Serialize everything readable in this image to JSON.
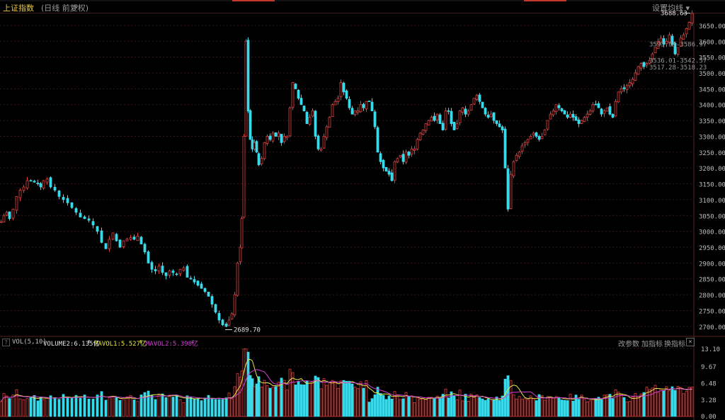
{
  "header": {
    "title": "上证指数",
    "subtitle": "(日线 前复权)",
    "settings_label": "设置均线"
  },
  "volume_panel": {
    "question_mark": "?",
    "indicator": "VOL(5,10)",
    "volume_label": "VOLUME2:6.135亿",
    "volume_arrow": "↑",
    "mavol1_label": "MAVOL1:5.527亿",
    "mavol1_arrow": "↑",
    "mavol2_label": "MAVOL2:5.398亿",
    "mavol2_arrow": "↓",
    "buttons": [
      "改参数",
      "加指标",
      "换指标"
    ],
    "close": "×"
  },
  "colors": {
    "up": "#e04040",
    "down": "#3ad8e8",
    "grid": "#3a1818",
    "axis_text": "#bdbdbd",
    "mavol1": "#e8e84a",
    "mavol2": "#d040d0",
    "title": "#e8c84a"
  },
  "chart_data": [
    {
      "type": "candlestick",
      "ylim": [
        2675,
        3690
      ],
      "yticks": [
        2700,
        2750,
        2800,
        2850,
        2900,
        2950,
        3000,
        3050,
        3100,
        3150,
        3200,
        3250,
        3300,
        3350,
        3400,
        3450,
        3500,
        3550,
        3600,
        3650
      ],
      "ytick_labels": [
        "2700.00",
        "2750.00",
        "2800.00",
        "2850.00",
        "2900.00",
        "2950.00",
        "3000.00",
        "3050.00",
        "3100.00",
        "3150.00",
        "3200.00",
        "3250.00",
        "3300.00",
        "3350.00",
        "3400.00",
        "3450.00",
        "3500.00",
        "3550.00",
        "3600.00",
        "3650.00"
      ],
      "annotations": [
        {
          "text": "3688.63",
          "value": 3688.63,
          "kind": "high"
        },
        {
          "text": "2689.70",
          "value": 2689.7,
          "kind": "low"
        },
        {
          "text": "3593.31-3586.97",
          "value": 3590,
          "kind": "gap"
        },
        {
          "text": "3536.01-3542.57",
          "value": 3539,
          "kind": "gap"
        },
        {
          "text": "3517.28-3518.23",
          "value": 3518,
          "kind": "gap"
        }
      ],
      "close_path": [
        [
          0,
          3030
        ],
        [
          4,
          3050
        ],
        [
          8,
          3060
        ],
        [
          12,
          3040
        ],
        [
          17,
          3070
        ],
        [
          22,
          3110
        ],
        [
          27,
          3130
        ],
        [
          32,
          3140
        ],
        [
          37,
          3160
        ],
        [
          42,
          3160
        ],
        [
          47,
          3155
        ],
        [
          52,
          3150
        ],
        [
          56,
          3140
        ],
        [
          60,
          3160
        ],
        [
          65,
          3165
        ],
        [
          70,
          3140
        ],
        [
          76,
          3130
        ],
        [
          82,
          3110
        ],
        [
          88,
          3100
        ],
        [
          94,
          3090
        ],
        [
          100,
          3075
        ],
        [
          106,
          3060
        ],
        [
          112,
          3045
        ],
        [
          118,
          3040
        ],
        [
          124,
          3035
        ],
        [
          130,
          3020
        ],
        [
          136,
          3000
        ],
        [
          142,
          2965
        ],
        [
          148,
          2945
        ],
        [
          153,
          2975
        ],
        [
          158,
          2995
        ],
        [
          163,
          2970
        ],
        [
          168,
          2950
        ],
        [
          173,
          2970
        ],
        [
          178,
          2975
        ],
        [
          183,
          2980
        ],
        [
          188,
          2975
        ],
        [
          193,
          2985
        ],
        [
          198,
          2960
        ],
        [
          203,
          2935
        ],
        [
          208,
          2900
        ],
        [
          213,
          2880
        ],
        [
          218,
          2875
        ],
        [
          223,
          2890
        ],
        [
          228,
          2870
        ],
        [
          233,
          2860
        ],
        [
          238,
          2875
        ],
        [
          243,
          2870
        ],
        [
          248,
          2865
        ],
        [
          253,
          2880
        ],
        [
          258,
          2885
        ],
        [
          263,
          2855
        ],
        [
          268,
          2850
        ],
        [
          273,
          2840
        ],
        [
          278,
          2830
        ],
        [
          283,
          2820
        ],
        [
          288,
          2810
        ],
        [
          293,
          2795
        ],
        [
          298,
          2770
        ],
        [
          303,
          2745
        ],
        [
          308,
          2720
        ],
        [
          313,
          2705
        ],
        [
          318,
          2700
        ],
        [
          322,
          2720
        ],
        [
          326,
          2740
        ],
        [
          330,
          2800
        ],
        [
          334,
          2900
        ],
        [
          338,
          2950
        ],
        [
          340,
          3040
        ],
        [
          343,
          3300
        ],
        [
          346,
          3600
        ],
        [
          349,
          3380
        ],
        [
          352,
          3290
        ],
        [
          355,
          3260
        ],
        [
          358,
          3280
        ],
        [
          361,
          3250
        ],
        [
          364,
          3210
        ],
        [
          368,
          3230
        ],
        [
          372,
          3280
        ],
        [
          376,
          3300
        ],
        [
          380,
          3290
        ],
        [
          384,
          3310
        ],
        [
          388,
          3300
        ],
        [
          392,
          3310
        ],
        [
          396,
          3280
        ],
        [
          400,
          3300
        ],
        [
          404,
          3300
        ],
        [
          408,
          3390
        ],
        [
          412,
          3470
        ],
        [
          416,
          3450
        ],
        [
          420,
          3420
        ],
        [
          424,
          3400
        ],
        [
          428,
          3380
        ],
        [
          432,
          3340
        ],
        [
          436,
          3360
        ],
        [
          440,
          3380
        ],
        [
          444,
          3300
        ],
        [
          448,
          3260
        ],
        [
          452,
          3260
        ],
        [
          456,
          3300
        ],
        [
          460,
          3330
        ],
        [
          464,
          3360
        ],
        [
          468,
          3400
        ],
        [
          472,
          3410
        ],
        [
          476,
          3420
        ],
        [
          480,
          3470
        ],
        [
          484,
          3440
        ],
        [
          488,
          3420
        ],
        [
          492,
          3390
        ],
        [
          496,
          3370
        ],
        [
          500,
          3380
        ],
        [
          504,
          3380
        ],
        [
          508,
          3400
        ],
        [
          512,
          3390
        ],
        [
          516,
          3410
        ],
        [
          520,
          3410
        ],
        [
          524,
          3380
        ],
        [
          528,
          3330
        ],
        [
          532,
          3250
        ],
        [
          536,
          3220
        ],
        [
          540,
          3200
        ],
        [
          544,
          3190
        ],
        [
          548,
          3180
        ],
        [
          552,
          3160
        ],
        [
          556,
          3220
        ],
        [
          560,
          3230
        ],
        [
          564,
          3240
        ],
        [
          568,
          3220
        ],
        [
          572,
          3250
        ],
        [
          576,
          3240
        ],
        [
          580,
          3260
        ],
        [
          584,
          3260
        ],
        [
          588,
          3290
        ],
        [
          592,
          3310
        ],
        [
          596,
          3320
        ],
        [
          600,
          3340
        ],
        [
          604,
          3350
        ],
        [
          608,
          3360
        ],
        [
          612,
          3350
        ],
        [
          616,
          3370
        ],
        [
          620,
          3340
        ],
        [
          624,
          3320
        ],
        [
          628,
          3380
        ],
        [
          632,
          3380
        ],
        [
          636,
          3340
        ],
        [
          640,
          3320
        ],
        [
          644,
          3340
        ],
        [
          648,
          3380
        ],
        [
          652,
          3390
        ],
        [
          656,
          3370
        ],
        [
          660,
          3380
        ],
        [
          664,
          3400
        ],
        [
          668,
          3420
        ],
        [
          672,
          3430
        ],
        [
          676,
          3410
        ],
        [
          680,
          3390
        ],
        [
          684,
          3370
        ],
        [
          688,
          3360
        ],
        [
          692,
          3370
        ],
        [
          696,
          3350
        ],
        [
          700,
          3340
        ],
        [
          704,
          3330
        ],
        [
          708,
          3320
        ],
        [
          712,
          3200
        ],
        [
          716,
          3070
        ],
        [
          720,
          3180
        ],
        [
          724,
          3220
        ],
        [
          728,
          3240
        ],
        [
          732,
          3250
        ],
        [
          736,
          3270
        ],
        [
          740,
          3280
        ],
        [
          744,
          3290
        ],
        [
          748,
          3300
        ],
        [
          752,
          3310
        ],
        [
          756,
          3300
        ],
        [
          760,
          3290
        ],
        [
          764,
          3300
        ],
        [
          768,
          3320
        ],
        [
          772,
          3350
        ],
        [
          776,
          3370
        ],
        [
          780,
          3380
        ],
        [
          784,
          3400
        ],
        [
          788,
          3390
        ],
        [
          792,
          3380
        ],
        [
          796,
          3370
        ],
        [
          800,
          3360
        ],
        [
          804,
          3370
        ],
        [
          808,
          3360
        ],
        [
          812,
          3350
        ],
        [
          816,
          3340
        ],
        [
          820,
          3350
        ],
        [
          824,
          3360
        ],
        [
          828,
          3370
        ],
        [
          832,
          3380
        ],
        [
          836,
          3400
        ],
        [
          840,
          3400
        ],
        [
          844,
          3390
        ],
        [
          848,
          3370
        ],
        [
          852,
          3380
        ],
        [
          856,
          3390
        ],
        [
          860,
          3370
        ],
        [
          864,
          3360
        ],
        [
          868,
          3410
        ],
        [
          872,
          3440
        ],
        [
          876,
          3450
        ],
        [
          880,
          3450
        ],
        [
          884,
          3460
        ],
        [
          888,
          3470
        ],
        [
          892,
          3480
        ],
        [
          896,
          3500
        ],
        [
          900,
          3520
        ],
        [
          904,
          3530
        ],
        [
          908,
          3520
        ],
        [
          912,
          3530
        ],
        [
          916,
          3540
        ],
        [
          920,
          3560
        ],
        [
          924,
          3580
        ],
        [
          928,
          3600
        ],
        [
          932,
          3610
        ],
        [
          936,
          3590
        ],
        [
          940,
          3600
        ],
        [
          944,
          3620
        ],
        [
          948,
          3590
        ],
        [
          952,
          3560
        ],
        [
          956,
          3580
        ],
        [
          960,
          3610
        ],
        [
          964,
          3620
        ],
        [
          968,
          3640
        ],
        [
          972,
          3660
        ],
        [
          976,
          3688
        ]
      ]
    },
    {
      "type": "bar",
      "title": "VOL(5,10)",
      "ylim": [
        0,
        13.1
      ],
      "yticks": [
        0,
        3.28,
        6.48,
        9.67,
        13.1
      ],
      "ytick_labels": [
        "0.00",
        "3.28",
        "6.48",
        "9.67",
        "13.10"
      ],
      "series": [
        {
          "name": "VOLUME2",
          "value": 6.135
        },
        {
          "name": "MAVOL1",
          "value": 5.527
        },
        {
          "name": "MAVOL2",
          "value": 5.398
        }
      ]
    }
  ]
}
